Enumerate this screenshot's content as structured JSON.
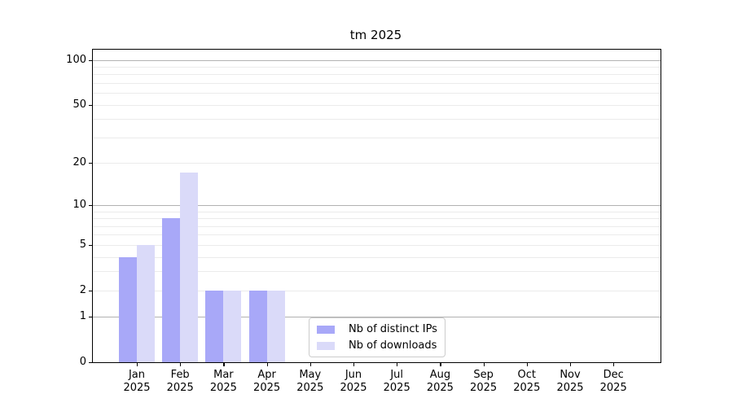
{
  "chart": {
    "background": "#ffffff",
    "axis_color": "#000000",
    "grid_major_color": "#b2b2b2",
    "grid_minor_color": "#ebebeb",
    "text_color": "#000000"
  },
  "chart_data": {
    "type": "bar",
    "title": "tm 2025",
    "categories": [
      {
        "month": "Jan",
        "year": "2025"
      },
      {
        "month": "Feb",
        "year": "2025"
      },
      {
        "month": "Mar",
        "year": "2025"
      },
      {
        "month": "Apr",
        "year": "2025"
      },
      {
        "month": "May",
        "year": "2025"
      },
      {
        "month": "Jun",
        "year": "2025"
      },
      {
        "month": "Jul",
        "year": "2025"
      },
      {
        "month": "Aug",
        "year": "2025"
      },
      {
        "month": "Sep",
        "year": "2025"
      },
      {
        "month": "Oct",
        "year": "2025"
      },
      {
        "month": "Nov",
        "year": "2025"
      },
      {
        "month": "Dec",
        "year": "2025"
      }
    ],
    "series": [
      {
        "name": "Nb of distinct IPs",
        "color": "#a8a8f8",
        "values": [
          4,
          8,
          2,
          2,
          0,
          0,
          0,
          0,
          0,
          0,
          0,
          0
        ]
      },
      {
        "name": "Nb of downloads",
        "color": "#dadaf9",
        "values": [
          5,
          17,
          2,
          2,
          0,
          0,
          0,
          0,
          0,
          0,
          0,
          0
        ]
      }
    ],
    "scale": "log1p",
    "ylim": [
      0,
      117
    ],
    "y_tick_labels": [
      0,
      1,
      2,
      5,
      10,
      20,
      50,
      100
    ],
    "y_major_gridlines": [
      1,
      10,
      100
    ],
    "y_minor_gridlines": [
      2,
      3,
      4,
      5,
      6,
      7,
      8,
      9,
      20,
      30,
      40,
      50,
      60,
      70,
      80,
      90
    ],
    "legend_position": "lower center-right",
    "grid": "on"
  }
}
